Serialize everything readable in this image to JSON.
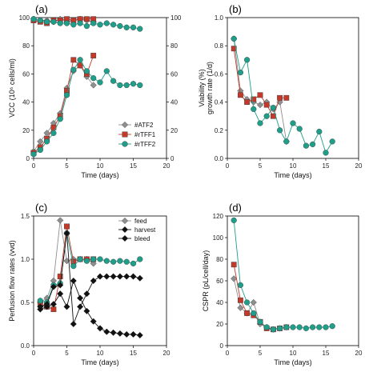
{
  "colors": {
    "gray": "#8f8f8f",
    "red": "#c4392a",
    "teal": "#1f9e8a",
    "black": "#111111"
  },
  "chart_data": [
    {
      "type": "line",
      "panel_label": "(a)",
      "xlabel": "Time (days)",
      "ylabel": "VCC (10⁶ cells/ml)",
      "ylabel_right": "",
      "xlim": [
        0,
        20
      ],
      "ylim": [
        0,
        100
      ],
      "xticks": [
        0,
        5,
        10,
        15,
        20
      ],
      "yticks": [
        0,
        20,
        40,
        60,
        80,
        100
      ],
      "yticks_right": [
        0,
        20,
        40,
        60,
        80,
        100
      ],
      "legend_position": "lower-right",
      "series": [
        {
          "name": "#ATF2",
          "marker": "diamond",
          "color": "gray",
          "in_legend": true,
          "x": [
            0,
            1,
            2,
            3,
            4,
            5,
            6,
            7,
            8,
            9
          ],
          "y": [
            5,
            12,
            18,
            25,
            32,
            50,
            62,
            66,
            58,
            52
          ]
        },
        {
          "name": "#rTFF1",
          "marker": "square",
          "color": "red",
          "in_legend": true,
          "x": [
            0,
            1,
            2,
            3,
            4,
            5,
            6,
            7,
            8,
            9
          ],
          "y": [
            4,
            8,
            14,
            22,
            30,
            48,
            70,
            66,
            60,
            73
          ]
        },
        {
          "name": "#rTFF2",
          "marker": "circle",
          "color": "teal",
          "in_legend": true,
          "x": [
            0,
            1,
            2,
            3,
            4,
            5,
            6,
            7,
            8,
            9,
            10,
            11,
            12,
            13,
            14,
            15,
            16
          ],
          "y": [
            3,
            6,
            12,
            18,
            28,
            45,
            63,
            70,
            62,
            57,
            54,
            62,
            55,
            52,
            52,
            53,
            52
          ]
        },
        {
          "name": "",
          "marker": "diamond",
          "color": "gray",
          "in_legend": false,
          "x": [
            0,
            1,
            2,
            3,
            4,
            5,
            6,
            7,
            8,
            9
          ],
          "y": [
            99,
            98,
            98,
            97,
            99,
            97,
            98,
            99,
            98,
            97
          ]
        },
        {
          "name": "",
          "marker": "square",
          "color": "red",
          "in_legend": false,
          "x": [
            0,
            1,
            2,
            3,
            4,
            5,
            6,
            7,
            8,
            9
          ],
          "y": [
            98,
            97,
            96,
            98,
            98,
            99,
            98,
            99,
            99,
            99
          ]
        },
        {
          "name": "",
          "marker": "circle",
          "color": "teal",
          "in_legend": false,
          "x": [
            0,
            1,
            2,
            3,
            4,
            5,
            6,
            7,
            8,
            9,
            10,
            11,
            12,
            13,
            14,
            15,
            16
          ],
          "y": [
            99,
            98,
            97,
            97,
            96,
            96,
            95,
            96,
            94,
            96,
            95,
            96,
            95,
            94,
            93,
            93,
            92
          ]
        }
      ]
    },
    {
      "type": "line",
      "panel_label": "(b)",
      "xlabel": "Time (days)",
      "ylabel": "Viability (%)\ngrowth rate (1/d)",
      "xlim": [
        0,
        20
      ],
      "ylim": [
        0,
        1.0
      ],
      "xticks": [
        0,
        5,
        10,
        15,
        20
      ],
      "yticks": [
        0.0,
        0.2,
        0.4,
        0.6,
        0.8,
        1.0
      ],
      "series": [
        {
          "name": "#ATF2",
          "marker": "diamond",
          "color": "gray",
          "x": [
            1,
            2,
            3,
            4,
            5,
            6,
            7,
            8,
            9
          ],
          "y": [
            0.85,
            0.48,
            0.42,
            0.4,
            0.38,
            0.4,
            0.35,
            0.4,
            0.12
          ]
        },
        {
          "name": "#rTFF1",
          "marker": "square",
          "color": "red",
          "x": [
            1,
            2,
            3,
            4,
            5,
            6,
            7,
            8,
            9
          ],
          "y": [
            0.78,
            0.45,
            0.4,
            0.42,
            0.45,
            0.38,
            0.3,
            0.43,
            0.43
          ]
        },
        {
          "name": "#rTFF2",
          "marker": "circle",
          "color": "teal",
          "x": [
            1,
            2,
            3,
            4,
            5,
            6,
            7,
            8,
            9,
            10,
            11,
            12,
            13,
            14,
            15,
            16
          ],
          "y": [
            0.85,
            0.61,
            0.7,
            0.35,
            0.25,
            0.3,
            0.36,
            0.2,
            0.12,
            0.25,
            0.21,
            0.09,
            0.1,
            0.19,
            0.04,
            0.12
          ]
        }
      ]
    },
    {
      "type": "line",
      "panel_label": "(c)",
      "xlabel": "Time (days)",
      "ylabel": "Perfusion flow rates (vvd)",
      "xlim": [
        0,
        20
      ],
      "ylim": [
        0,
        1.5
      ],
      "xticks": [
        0,
        5,
        10,
        15,
        20
      ],
      "yticks": [
        0.0,
        0.5,
        1.0,
        1.5
      ],
      "legend_position": "upper-right",
      "legend": [
        {
          "label": "feed",
          "marker": "diamond",
          "color": "gray"
        },
        {
          "label": "harvest",
          "marker": "diamond",
          "color": "black"
        },
        {
          "label": "bleed",
          "marker": "diamond",
          "color": "black"
        }
      ],
      "series": [
        {
          "name": "",
          "marker": "diamond",
          "color": "gray",
          "x": [
            1,
            2,
            3,
            4,
            5,
            6,
            7,
            8,
            9
          ],
          "y": [
            0.5,
            0.55,
            0.75,
            1.45,
            0.98,
            1.0,
            1.0,
            1.0,
            0.95
          ]
        },
        {
          "name": "",
          "marker": "square",
          "color": "red",
          "x": [
            1,
            2,
            3,
            4,
            5,
            6,
            7,
            8,
            9
          ],
          "y": [
            0.48,
            0.45,
            0.42,
            0.8,
            1.38,
            0.97,
            1.0,
            1.0,
            1.0
          ]
        },
        {
          "name": "",
          "marker": "circle",
          "color": "teal",
          "x": [
            1,
            2,
            3,
            4,
            5,
            6,
            7,
            8,
            9,
            10,
            11,
            12,
            13,
            14,
            15,
            16
          ],
          "y": [
            0.52,
            0.5,
            0.7,
            0.72,
            1.3,
            0.92,
            1.0,
            0.98,
            1.0,
            1.0,
            0.98,
            0.97,
            0.98,
            0.97,
            0.95,
            1.0
          ]
        },
        {
          "name": "",
          "marker": "diamond",
          "color": "black",
          "x": [
            1,
            2,
            3,
            4,
            5,
            6,
            7,
            8,
            9,
            10,
            11,
            12,
            13,
            14,
            15,
            16
          ],
          "y": [
            0.45,
            0.48,
            0.68,
            0.7,
            1.3,
            0.25,
            0.45,
            0.6,
            0.75,
            0.8,
            0.8,
            0.8,
            0.8,
            0.8,
            0.8,
            0.78
          ]
        },
        {
          "name": "",
          "marker": "diamond",
          "color": "black",
          "x": [
            1,
            2,
            3,
            4,
            5,
            6,
            7,
            8,
            9,
            10,
            11,
            12,
            13,
            14,
            15,
            16
          ],
          "y": [
            0.42,
            0.45,
            0.48,
            0.6,
            0.45,
            0.75,
            0.55,
            0.4,
            0.28,
            0.2,
            0.16,
            0.15,
            0.14,
            0.13,
            0.13,
            0.12
          ]
        }
      ]
    },
    {
      "type": "line",
      "panel_label": "(d)",
      "xlabel": "Time (days)",
      "ylabel": "CSPR (pL/cell/day)",
      "xlim": [
        0,
        20
      ],
      "ylim": [
        0,
        120
      ],
      "xticks": [
        0,
        5,
        10,
        15,
        20
      ],
      "yticks": [
        0,
        20,
        40,
        60,
        80,
        100,
        120
      ],
      "series": [
        {
          "name": "#ATF2",
          "marker": "diamond",
          "color": "gray",
          "x": [
            1,
            2,
            3,
            4,
            5,
            6,
            7,
            8,
            9
          ],
          "y": [
            62,
            35,
            30,
            40,
            20,
            17,
            15,
            16,
            17
          ]
        },
        {
          "name": "#rTFF1",
          "marker": "square",
          "color": "red",
          "x": [
            1,
            2,
            3,
            4,
            5,
            6,
            7,
            8,
            9
          ],
          "y": [
            75,
            42,
            30,
            28,
            22,
            16,
            15,
            16,
            17
          ]
        },
        {
          "name": "#rTFF2",
          "marker": "circle",
          "color": "teal",
          "x": [
            1,
            2,
            3,
            4,
            5,
            6,
            7,
            8,
            9,
            10,
            11,
            12,
            13,
            14,
            15,
            16
          ],
          "y": [
            116,
            56,
            40,
            30,
            22,
            17,
            15,
            16,
            17,
            17,
            17,
            16,
            17,
            17,
            17,
            18
          ]
        }
      ]
    }
  ]
}
